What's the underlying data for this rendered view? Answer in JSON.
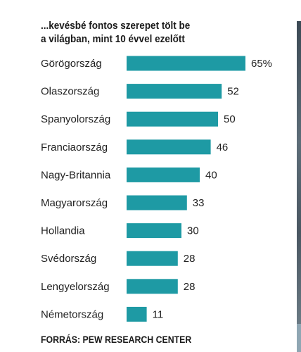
{
  "title_lines": [
    "...kevésbé fontos szerepet tölt be",
    "a világban, mint 10 évvel ezelőtt"
  ],
  "source": "FORRÁS: PEW RESEARCH CENTER",
  "colors": {
    "bar": "#1e9aa4",
    "text": "#1a1a1a"
  },
  "chart_data": {
    "type": "bar",
    "orientation": "horizontal",
    "title": "...kevésbé fontos szerepet tölt be a világban, mint 10 évvel ezelőtt",
    "categories": [
      "Görögország",
      "Olaszország",
      "Spanyolország",
      "Franciaország",
      "Nagy-Britannia",
      "Magyarország",
      "Hollandia",
      "Svédország",
      "Lengyelország",
      "Németország"
    ],
    "values": [
      65,
      52,
      50,
      46,
      40,
      33,
      30,
      28,
      28,
      11
    ],
    "value_labels": [
      "65%",
      "52",
      "50",
      "46",
      "40",
      "33",
      "30",
      "28",
      "28",
      "11"
    ],
    "unit": "%",
    "xlim": [
      0,
      100
    ],
    "grid": false,
    "legend": "none"
  }
}
